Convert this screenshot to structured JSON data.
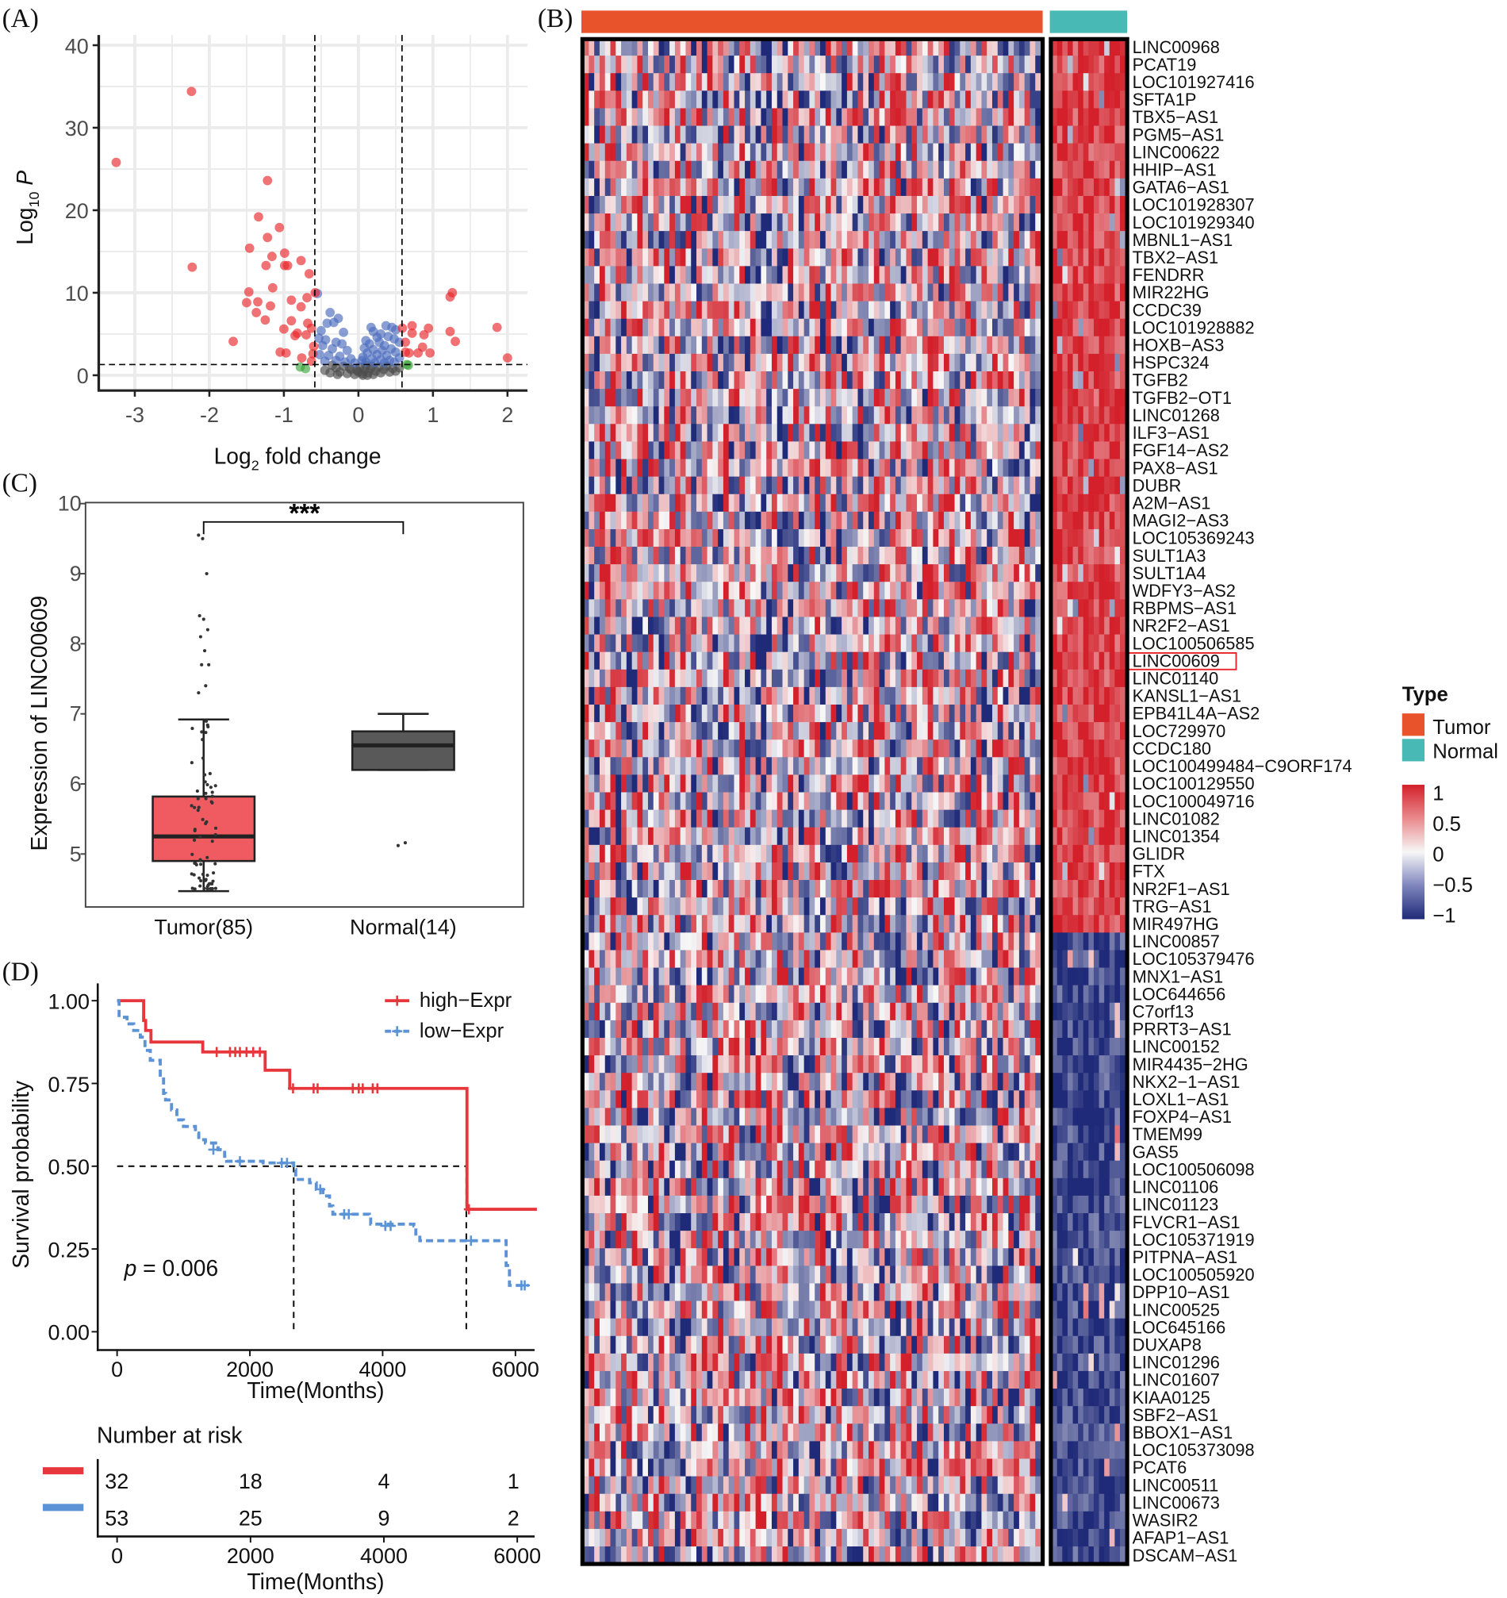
{
  "panels": {
    "a": "(A)",
    "b": "(B)",
    "c": "(C)",
    "d": "(D)"
  },
  "chart_data": [
    {
      "type": "scatter",
      "panel": "A",
      "xlabel_main": "Log",
      "xlabel_sub": "2",
      "xlabel_rest": " fold change",
      "ylabel_main": "Log",
      "ylabel_sub": "10",
      "ylabel_rest": " P",
      "xlim": [
        -3.5,
        2.3
      ],
      "ylim": [
        -1,
        41
      ],
      "xticks": [
        "-3",
        "-2",
        "-1",
        "0",
        "1",
        "2"
      ],
      "yticks": [
        "0",
        "10",
        "20",
        "30",
        "40"
      ],
      "grid": true,
      "thresholds": {
        "log2fc": [
          -0.585,
          0.585
        ],
        "log10p": 1.3
      },
      "colors": {
        "significant": "#e8262b",
        "p_only": "#4a6bbd",
        "fc_only": "#3aa53a",
        "ns": "#4d4d4d"
      },
      "points": {
        "significant": [
          [
            -3.25,
            25.8
          ],
          [
            -2.24,
            34.4
          ],
          [
            -2.23,
            13.1
          ],
          [
            -1.68,
            4.1
          ],
          [
            -1.22,
            23.6
          ],
          [
            -1.34,
            19.2
          ],
          [
            -1.06,
            17.9
          ],
          [
            -1.22,
            16.7
          ],
          [
            -1.46,
            15.4
          ],
          [
            -1.16,
            14.4
          ],
          [
            -0.99,
            14.8
          ],
          [
            -1.24,
            13.3
          ],
          [
            -0.99,
            13.3
          ],
          [
            -0.95,
            13.3
          ],
          [
            -0.77,
            13.9
          ],
          [
            -0.66,
            12.3
          ],
          [
            -1.15,
            10.6
          ],
          [
            -1.47,
            10.1
          ],
          [
            -1.5,
            8.8
          ],
          [
            -1.35,
            8.9
          ],
          [
            -0.9,
            9.1
          ],
          [
            -0.69,
            9.4
          ],
          [
            -0.58,
            10.0
          ],
          [
            -1.18,
            8.4
          ],
          [
            -1.37,
            7.6
          ],
          [
            -0.77,
            8.3
          ],
          [
            -0.9,
            6.6
          ],
          [
            -1.25,
            6.7
          ],
          [
            -1.0,
            5.6
          ],
          [
            -0.68,
            6.3
          ],
          [
            -0.63,
            5.7
          ],
          [
            -0.85,
            4.8
          ],
          [
            -0.7,
            4.9
          ],
          [
            -0.82,
            5.1
          ],
          [
            -0.6,
            3.5
          ],
          [
            -0.61,
            2.6
          ],
          [
            -1.05,
            2.8
          ],
          [
            -0.97,
            2.7
          ],
          [
            -0.76,
            2.1
          ],
          [
            -0.63,
            1.7
          ],
          [
            0.59,
            5.7
          ],
          [
            0.72,
            6.0
          ],
          [
            0.72,
            5.1
          ],
          [
            0.94,
            5.7
          ],
          [
            0.88,
            4.9
          ],
          [
            0.63,
            4.0
          ],
          [
            1.23,
            9.5
          ],
          [
            1.26,
            10.0
          ],
          [
            1.23,
            5.3
          ],
          [
            1.3,
            4.1
          ],
          [
            1.86,
            5.8
          ],
          [
            2.0,
            2.1
          ],
          [
            0.68,
            2.7
          ],
          [
            0.8,
            2.7
          ],
          [
            0.86,
            3.4
          ],
          [
            0.96,
            2.7
          ],
          [
            0.63,
            2.8
          ]
        ],
        "fc_only": [
          [
            -0.78,
            1.0
          ],
          [
            -0.71,
            0.8
          ],
          [
            0.65,
            1.3
          ],
          [
            0.67,
            1.2
          ]
        ],
        "p_only": [
          [
            -0.55,
            9.9
          ],
          [
            -0.38,
            7.6
          ],
          [
            -0.27,
            6.9
          ],
          [
            -0.33,
            6.4
          ],
          [
            -0.42,
            6.3
          ],
          [
            -0.5,
            5.4
          ],
          [
            -0.2,
            5.2
          ],
          [
            -0.53,
            4.5
          ],
          [
            -0.44,
            4.3
          ],
          [
            -0.3,
            4.0
          ],
          [
            -0.48,
            3.6
          ],
          [
            -0.22,
            3.8
          ],
          [
            -0.35,
            3.2
          ],
          [
            -0.15,
            3.0
          ],
          [
            -0.52,
            2.5
          ],
          [
            -0.4,
            2.4
          ],
          [
            -0.25,
            2.3
          ],
          [
            -0.1,
            2.0
          ],
          [
            -0.3,
            1.8
          ],
          [
            -0.45,
            1.7
          ],
          [
            -0.18,
            1.6
          ],
          [
            0.17,
            5.8
          ],
          [
            0.2,
            5.3
          ],
          [
            0.37,
            6.0
          ],
          [
            0.45,
            5.8
          ],
          [
            0.5,
            5.5
          ],
          [
            0.3,
            5.0
          ],
          [
            0.25,
            4.6
          ],
          [
            0.4,
            4.7
          ],
          [
            0.1,
            4.2
          ],
          [
            0.15,
            3.8
          ],
          [
            0.28,
            4.0
          ],
          [
            0.35,
            3.6
          ],
          [
            0.48,
            4.4
          ],
          [
            0.55,
            4.0
          ],
          [
            0.08,
            3.3
          ],
          [
            0.2,
            3.1
          ],
          [
            0.32,
            3.0
          ],
          [
            0.44,
            3.2
          ],
          [
            0.12,
            2.7
          ],
          [
            0.25,
            2.5
          ],
          [
            0.38,
            2.4
          ],
          [
            0.5,
            2.8
          ],
          [
            0.06,
            2.2
          ],
          [
            0.18,
            2.0
          ],
          [
            0.3,
            1.9
          ],
          [
            0.42,
            1.8
          ],
          [
            0.55,
            2.1
          ],
          [
            0.1,
            1.6
          ],
          [
            0.22,
            1.5
          ],
          [
            0.35,
            1.5
          ],
          [
            0.48,
            1.6
          ],
          [
            -0.05,
            1.5
          ],
          [
            0.05,
            1.8
          ]
        ],
        "ns": [
          [
            -0.45,
            0.6
          ],
          [
            -0.38,
            0.3
          ],
          [
            -0.3,
            0.9
          ],
          [
            -0.25,
            0.4
          ],
          [
            -0.2,
            1.1
          ],
          [
            -0.15,
            0.2
          ],
          [
            -0.1,
            0.7
          ],
          [
            -0.05,
            0.1
          ],
          [
            0.0,
            0.4
          ],
          [
            0.02,
            1.0
          ],
          [
            0.05,
            0.2
          ],
          [
            0.08,
            0.6
          ],
          [
            0.1,
            1.2
          ],
          [
            0.13,
            0.3
          ],
          [
            0.16,
            0.8
          ],
          [
            0.2,
            0.1
          ],
          [
            0.23,
            0.5
          ],
          [
            0.27,
            1.0
          ],
          [
            0.3,
            0.3
          ],
          [
            0.34,
            0.7
          ],
          [
            0.38,
            1.1
          ],
          [
            0.42,
            0.4
          ],
          [
            0.46,
            0.8
          ],
          [
            0.5,
            0.5
          ],
          [
            0.55,
            0.9
          ],
          [
            -0.35,
            1.2
          ],
          [
            -0.12,
            0.9
          ],
          [
            0.18,
            1.1
          ],
          [
            0.06,
            0.0
          ],
          [
            -0.02,
            0.6
          ],
          [
            0.12,
            0.0
          ],
          [
            -0.28,
            0.1
          ]
        ]
      }
    },
    {
      "type": "heatmap",
      "panel": "B",
      "groups": [
        {
          "name": "Tumor",
          "color": "#e8532c",
          "n": 85
        },
        {
          "name": "Normal",
          "color": "#48b9b5",
          "n": 14
        }
      ],
      "legend_title": "Type",
      "scale_ticks": [
        "1",
        "0.5",
        "0",
        "−0.5",
        "−1"
      ],
      "scale_colors": {
        "high": "#d3202a",
        "mid": "#f7f7f7",
        "low": "#1f2a78"
      },
      "highlighted_row": "LINC00609",
      "highlight_color": "#e8262b",
      "rows_up_in_normal": [
        "LINC00968",
        "PCAT19",
        "LOC101927416",
        "SFTA1P",
        "TBX5−AS1",
        "PGM5−AS1",
        "LINC00622",
        "HHIP−AS1",
        "GATA6−AS1",
        "LOC101928307",
        "LOC101929340",
        "MBNL1−AS1",
        "TBX2−AS1",
        "FENDRR",
        "MIR22HG",
        "CCDC39",
        "LOC101928882",
        "HOXB−AS3",
        "HSPC324",
        "TGFB2",
        "TGFB2−OT1",
        "LINC01268",
        "ILF3−AS1",
        "FGF14−AS2",
        "PAX8−AS1",
        "DUBR",
        "A2M−AS1",
        "MAGI2−AS3",
        "LOC105369243",
        "SULT1A3",
        "SULT1A4",
        "WDFY3−AS2",
        "RBPMS−AS1",
        "NR2F2−AS1",
        "LOC100506585",
        "LINC00609",
        "LINC01140",
        "KANSL1−AS1",
        "EPB41L4A−AS2",
        "LOC729970",
        "CCDC180",
        "LOC100499484−C9ORF174",
        "LOC100129550",
        "LOC100049716",
        "LINC01082",
        "LINC01354",
        "GLIDR",
        "FTX",
        "NR2F1−AS1",
        "TRG−AS1",
        "MIR497HG"
      ],
      "rows_down_in_normal": [
        "LINC00857",
        "LOC105379476",
        "MNX1−AS1",
        "LOC644656",
        "C7orf13",
        "PRRT3−AS1",
        "LINC00152",
        "MIR4435−2HG",
        "NKX2−1−AS1",
        "LOXL1−AS1",
        "FOXP4−AS1",
        "TMEM99",
        "GAS5",
        "LOC100506098",
        "LINC01106",
        "LINC01123",
        "FLVCR1−AS1",
        "LOC105371919",
        "PITPNA−AS1",
        "LOC100505920",
        "DPP10−AS1",
        "LINC00525",
        "LOC645166",
        "DUXAP8",
        "LINC01296",
        "LINC01607",
        "KIAA0125",
        "SBF2−AS1",
        "BBOX1−AS1",
        "LOC105373098",
        "PCAT6",
        "LINC00511",
        "LINC00673",
        "WASIR2",
        "AFAP1−AS1",
        "DSCAM−AS1"
      ]
    },
    {
      "type": "box",
      "panel": "C",
      "ylabel": "Expression of LINC00609",
      "ylim": [
        4.3,
        10
      ],
      "yticks": [
        "5",
        "6",
        "7",
        "8",
        "9",
        "10"
      ],
      "significance": "***",
      "categories": [
        "Tumor(85)",
        "Normal(14)"
      ],
      "boxes": [
        {
          "color": "#ef5b60",
          "whisker_low": 4.47,
          "q1": 4.9,
          "median": 5.25,
          "q3": 5.82,
          "whisker_high": 6.92,
          "outliers": [
            7.3,
            7.4,
            7.7,
            7.7,
            7.9,
            8.1,
            8.2,
            8.35,
            8.4,
            9.0,
            9.5,
            9.55
          ]
        },
        {
          "color": "#595959",
          "whisker_low": 6.2,
          "q1": 6.2,
          "median": 6.55,
          "q3": 6.75,
          "whisker_high": 7.0,
          "outliers": [
            5.12,
            5.16
          ]
        }
      ]
    },
    {
      "type": "line",
      "panel": "D",
      "ylabel": "Survival probability",
      "xlabel": "Time(Months)",
      "xlim": [
        -500,
        6300
      ],
      "ylim": [
        -0.05,
        1.05
      ],
      "xticks": [
        "0",
        "2000",
        "4000",
        "6000"
      ],
      "yticks": [
        "0.00",
        "0.25",
        "0.50",
        "0.75",
        "1.00"
      ],
      "pvalue_label": "p",
      "pvalue_text": " = 0.006",
      "legend": "top-right",
      "median_lines": [
        2660,
        5260
      ],
      "series": [
        {
          "name": "high−Expr",
          "color": "#e8373c",
          "dash": false,
          "steps": [
            [
              0,
              1
            ],
            [
              400,
              0.94
            ],
            [
              430,
              0.91
            ],
            [
              510,
              0.875
            ],
            [
              1290,
              0.845
            ],
            [
              2230,
              0.79
            ],
            [
              2600,
              0.735
            ],
            [
              5270,
              0.37
            ],
            [
              6300,
              0.365
            ]
          ],
          "censored": [
            [
              1500,
              0.845
            ],
            [
              1700,
              0.845
            ],
            [
              1780,
              0.845
            ],
            [
              1850,
              0.845
            ],
            [
              1950,
              0.845
            ],
            [
              2050,
              0.845
            ],
            [
              2150,
              0.845
            ],
            [
              2650,
              0.735
            ],
            [
              2960,
              0.735
            ],
            [
              3020,
              0.735
            ],
            [
              3550,
              0.735
            ],
            [
              3640,
              0.735
            ],
            [
              3700,
              0.735
            ],
            [
              3850,
              0.735
            ],
            [
              3920,
              0.735
            ],
            [
              5300,
              0.37
            ]
          ]
        },
        {
          "name": "low−Expr",
          "color": "#5b93d6",
          "dash": true,
          "steps": [
            [
              0,
              1
            ],
            [
              30,
              0.95
            ],
            [
              150,
              0.93
            ],
            [
              250,
              0.91
            ],
            [
              350,
              0.89
            ],
            [
              420,
              0.85
            ],
            [
              500,
              0.82
            ],
            [
              650,
              0.77
            ],
            [
              700,
              0.72
            ],
            [
              730,
              0.7
            ],
            [
              820,
              0.67
            ],
            [
              900,
              0.64
            ],
            [
              1000,
              0.62
            ],
            [
              1180,
              0.6
            ],
            [
              1230,
              0.58
            ],
            [
              1330,
              0.57
            ],
            [
              1520,
              0.55
            ],
            [
              1620,
              0.53
            ],
            [
              1650,
              0.515
            ],
            [
              2200,
              0.51
            ],
            [
              2660,
              0.49
            ],
            [
              2690,
              0.46
            ],
            [
              2900,
              0.45
            ],
            [
              3000,
              0.43
            ],
            [
              3100,
              0.41
            ],
            [
              3200,
              0.38
            ],
            [
              3250,
              0.355
            ],
            [
              3800,
              0.345
            ],
            [
              3820,
              0.325
            ],
            [
              4470,
              0.32
            ],
            [
              4500,
              0.295
            ],
            [
              4560,
              0.275
            ],
            [
              5800,
              0.275
            ],
            [
              5860,
              0.2
            ],
            [
              5910,
              0.14
            ],
            [
              6200,
              0.14
            ]
          ],
          "censored": [
            [
              1450,
              0.55
            ],
            [
              1850,
              0.515
            ],
            [
              2480,
              0.51
            ],
            [
              2560,
              0.51
            ],
            [
              3060,
              0.43
            ],
            [
              3420,
              0.355
            ],
            [
              3490,
              0.355
            ],
            [
              4040,
              0.32
            ],
            [
              4120,
              0.32
            ],
            [
              5330,
              0.275
            ],
            [
              6090,
              0.14
            ],
            [
              6140,
              0.14
            ]
          ]
        }
      ],
      "risk_table": {
        "title": "Number at risk",
        "xlabel": "Time(Months)",
        "xticks": [
          "0",
          "2000",
          "4000",
          "6000"
        ],
        "rows": [
          {
            "color": "#e8373c",
            "values": [
              "32",
              "18",
              "4",
              "1"
            ]
          },
          {
            "color": "#5b93d6",
            "values": [
              "53",
              "25",
              "9",
              "2"
            ]
          }
        ]
      }
    }
  ]
}
